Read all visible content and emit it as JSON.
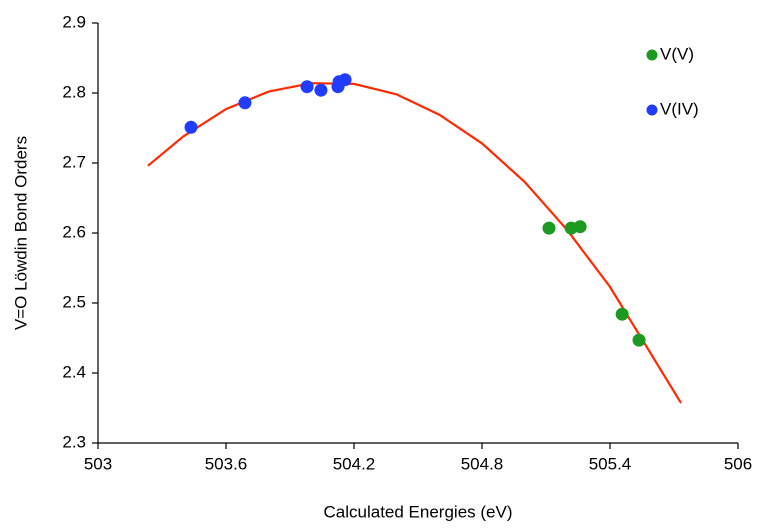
{
  "chart_data": {
    "type": "scatter",
    "x_label": "Calculated Energies (eV)",
    "y_label": "V=O Löwdin Bond Orders",
    "xlim": [
      503,
      506
    ],
    "xticks": [
      503,
      503.6,
      504.2,
      504.8,
      505.4,
      506
    ],
    "ylim": [
      2.3,
      2.9
    ],
    "yticks": [
      2.3,
      2.4,
      2.5,
      2.6,
      2.7,
      2.8,
      2.9
    ],
    "legend": "upper right",
    "series": [
      {
        "name": "V(V)",
        "color": "#1b9a22",
        "x": [
          505.114,
          505.218,
          505.26,
          505.457,
          505.536
        ],
        "values": [
          2.607,
          2.607,
          2.609,
          2.484,
          2.447
        ]
      },
      {
        "name": "V(IV)",
        "color": "#1f3cff",
        "x": [
          503.436,
          503.689,
          503.98,
          504.045,
          504.125,
          504.13,
          504.158
        ],
        "values": [
          2.751,
          2.786,
          2.809,
          2.804,
          2.809,
          2.816,
          2.819
        ]
      }
    ],
    "fit": {
      "color": "#ff2a00",
      "x": [
        503.234,
        503.4,
        503.6,
        503.8,
        504.0,
        504.2,
        504.4,
        504.6,
        504.8,
        505.0,
        505.2,
        505.4,
        505.733
      ],
      "values": [
        2.696,
        2.738,
        2.777,
        2.802,
        2.814,
        2.813,
        2.798,
        2.769,
        2.728,
        2.673,
        2.604,
        2.523,
        2.357
      ]
    }
  }
}
